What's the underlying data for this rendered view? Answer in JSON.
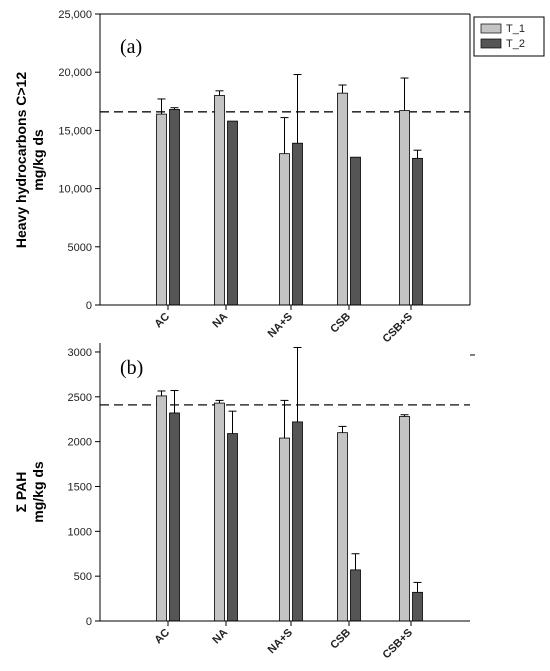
{
  "colors": {
    "T_1": "#c4c4c4",
    "T_2": "#555555",
    "axis": "#000000",
    "reference_line": "#333333"
  },
  "legend": {
    "items": [
      {
        "label": "T_1",
        "color": "#c4c4c4"
      },
      {
        "label": "T_2",
        "color": "#555555"
      }
    ],
    "placement": "top-right"
  },
  "chart_data": [
    {
      "type": "bar",
      "panel_label": "(a)",
      "ylabel_lines": [
        "Heavy hydrocarbons C>12",
        "mg/kg ds"
      ],
      "categories": [
        "AC",
        "NA",
        "NA+S",
        "CSB",
        "CSB+S"
      ],
      "ylim": [
        0,
        25000
      ],
      "yticks": [
        0,
        5000,
        10000,
        15000,
        20000,
        25000
      ],
      "ytick_labels": [
        "0",
        "5000",
        "10,000",
        "15,000",
        "20,000",
        "25,000"
      ],
      "reference_line": 16600,
      "series": [
        {
          "name": "T_1",
          "values": [
            16400,
            18000,
            13000,
            18200,
            16700
          ],
          "errors": [
            1300,
            400,
            3100,
            700,
            2800
          ]
        },
        {
          "name": "T_2",
          "values": [
            16800,
            15800,
            13900,
            12700,
            12600
          ],
          "errors": [
            150,
            0,
            5900,
            0,
            700
          ]
        }
      ]
    },
    {
      "type": "bar",
      "panel_label": "(b)",
      "ylabel_lines": [
        "Σ PAH",
        "mg/kg ds"
      ],
      "categories": [
        "AC",
        "NA",
        "NA+S",
        "CSB",
        "CSB+S"
      ],
      "ylim": [
        0,
        3100
      ],
      "yticks": [
        0,
        500,
        1000,
        1500,
        2000,
        2500,
        3000
      ],
      "ytick_labels": [
        "0",
        "500",
        "1000",
        "1500",
        "2000",
        "2500",
        "3000"
      ],
      "reference_line": 2410,
      "series": [
        {
          "name": "T_1",
          "values": [
            2510,
            2430,
            2040,
            2100,
            2280
          ],
          "errors": [
            55,
            30,
            420,
            70,
            20
          ]
        },
        {
          "name": "T_2",
          "values": [
            2320,
            2090,
            2220,
            570,
            320
          ],
          "errors": [
            250,
            250,
            830,
            180,
            110
          ]
        }
      ]
    }
  ]
}
